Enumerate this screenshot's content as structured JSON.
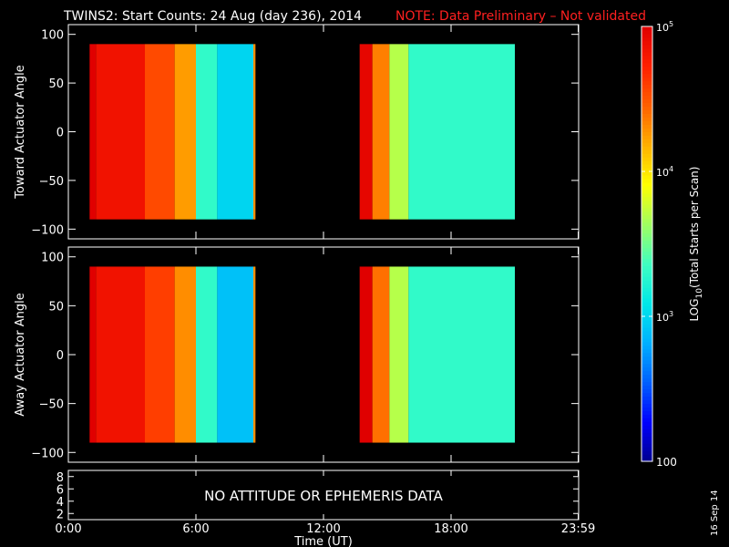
{
  "header": {
    "title": "TWINS2: Start Counts: 24 Aug (day 236), 2014",
    "note": "NOTE: Data Preliminary – Not validated"
  },
  "date_stamp": "16 Sep 14",
  "colors": {
    "background": "#000000",
    "axes": "#ffffff",
    "note": "#ff2020",
    "colormap": [
      "#00008f",
      "#0000ff",
      "#0060ff",
      "#00b0ff",
      "#00e8e8",
      "#40ffc0",
      "#a0ff60",
      "#ffff00",
      "#ffb000",
      "#ff6000",
      "#ff2000",
      "#e00000"
    ]
  },
  "chart_data": [
    {
      "type": "heatmap",
      "ylabel": "Toward Actuator Angle",
      "xlim": [
        0,
        24
      ],
      "ylim": [
        -110,
        110
      ],
      "yticks": [
        "100",
        "50",
        "0",
        "−50",
        "−100"
      ],
      "ytick_values": [
        100,
        50,
        0,
        -50,
        -100
      ],
      "angle_range": [
        -90,
        90
      ],
      "segments": [
        {
          "time": [
            1.0,
            8.8
          ],
          "bands": [
            {
              "t": [
                1.0,
                1.3
              ],
              "level": 5.0
            },
            {
              "t": [
                1.3,
                3.6
              ],
              "level": 4.85
            },
            {
              "t": [
                3.6,
                5.0
              ],
              "level": 4.55
            },
            {
              "t": [
                5.0,
                6.0
              ],
              "level": 4.25
            },
            {
              "t": [
                6.0,
                7.0
              ],
              "level": 3.3
            },
            {
              "t": [
                7.0,
                8.7
              ],
              "level": 3.0
            },
            {
              "t": [
                8.7,
                8.8
              ],
              "level": 4.3
            }
          ]
        },
        {
          "time": [
            13.7,
            21.0
          ],
          "bands": [
            {
              "t": [
                13.7,
                14.3
              ],
              "level": 4.95
            },
            {
              "t": [
                14.3,
                15.1
              ],
              "level": 4.35
            },
            {
              "t": [
                15.1,
                16.0
              ],
              "level": 3.7
            },
            {
              "t": [
                16.0,
                21.0
              ],
              "level": 3.3
            }
          ]
        }
      ]
    },
    {
      "type": "heatmap",
      "ylabel": "Away Actuator Angle",
      "xlim": [
        0,
        24
      ],
      "ylim": [
        -110,
        110
      ],
      "yticks": [
        "100",
        "50",
        "0",
        "−50",
        "−100"
      ],
      "ytick_values": [
        100,
        50,
        0,
        -50,
        -100
      ],
      "angle_range": [
        -90,
        90
      ],
      "segments": [
        {
          "time": [
            1.0,
            8.8
          ],
          "bands": [
            {
              "t": [
                1.0,
                1.3
              ],
              "level": 5.0
            },
            {
              "t": [
                1.3,
                3.6
              ],
              "level": 4.85
            },
            {
              "t": [
                3.6,
                5.0
              ],
              "level": 4.6
            },
            {
              "t": [
                5.0,
                6.0
              ],
              "level": 4.3
            },
            {
              "t": [
                6.0,
                7.0
              ],
              "level": 3.3
            },
            {
              "t": [
                7.0,
                8.7
              ],
              "level": 2.9
            },
            {
              "t": [
                8.7,
                8.8
              ],
              "level": 4.3
            }
          ]
        },
        {
          "time": [
            13.7,
            21.0
          ],
          "bands": [
            {
              "t": [
                13.7,
                14.3
              ],
              "level": 5.0
            },
            {
              "t": [
                14.3,
                15.1
              ],
              "level": 4.4
            },
            {
              "t": [
                15.1,
                16.0
              ],
              "level": 3.7
            },
            {
              "t": [
                16.0,
                21.0
              ],
              "level": 3.3
            }
          ]
        }
      ]
    },
    {
      "type": "line",
      "yticks": [
        "8",
        "6",
        "4",
        "2"
      ],
      "ytick_values": [
        8,
        6,
        4,
        2
      ],
      "ylim": [
        1,
        9
      ],
      "message": "NO ATTITUDE OR EPHEMERIS DATA"
    }
  ],
  "xaxis": {
    "label": "Time (UT)",
    "ticks": [
      "0:00",
      "6:00",
      "12:00",
      "18:00",
      "23:59"
    ],
    "tick_values": [
      0,
      6,
      12,
      18,
      23.98
    ]
  },
  "colorbar": {
    "title": "LOG10(Total Starts per Scan)",
    "title_main": "LOG",
    "title_sub": "10",
    "title_rest": "(Total Starts per Scan)",
    "range": [
      2,
      5
    ],
    "ticks": [
      {
        "value": 5,
        "base": "10",
        "exp": "5"
      },
      {
        "value": 4,
        "base": "10",
        "exp": "4"
      },
      {
        "value": 3,
        "base": "10",
        "exp": "3"
      }
    ],
    "min_label": "100"
  }
}
